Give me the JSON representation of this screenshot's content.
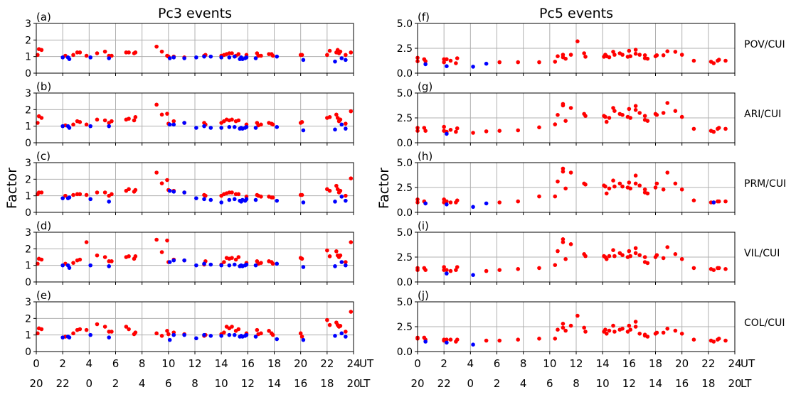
{
  "chart_data": [
    {
      "type": "scatter",
      "title": "Pc3 events",
      "ylabel": "Factor",
      "ylim": [
        0,
        3
      ],
      "yticks": [
        "0",
        "1",
        "2",
        "3"
      ],
      "xlim": [
        0,
        24
      ],
      "xticks_ut": [
        "0",
        "2",
        "4",
        "6",
        "8",
        "10",
        "12",
        "14",
        "16",
        "18",
        "20",
        "22",
        "24"
      ],
      "xticks_lt": [
        "20",
        "22",
        "0",
        "2",
        "4",
        "6",
        "8",
        "10",
        "12",
        "14",
        "16",
        "18",
        "20"
      ],
      "xlabel_ut": "UT",
      "xlabel_lt": "LT",
      "grid": true,
      "colors": {
        "red": "#ff0000",
        "blue": "#0000ff"
      },
      "red_x": [
        0.1,
        0.2,
        0.4,
        2.2,
        2.8,
        3.1,
        3.3,
        3.8,
        4.6,
        5.2,
        5.5,
        5.7,
        6.8,
        7.0,
        7.4,
        7.5,
        9.1,
        9.5,
        9.9,
        10.0,
        10.4,
        11.2,
        12.7,
        12.8,
        14.0,
        14.2,
        14.4,
        14.6,
        14.8,
        15.1,
        15.3,
        15.9,
        16.7,
        16.8,
        17.0,
        17.6,
        17.8,
        17.9,
        20.0,
        20.1,
        22.0,
        22.2,
        22.7,
        22.8,
        22.9,
        23.0,
        23.4,
        23.8
      ],
      "blue_x": [
        2.0,
        2.4,
        2.5,
        4.1,
        5.5,
        10.1,
        10.4,
        11.2,
        12.1,
        12.7,
        13.2,
        14.0,
        14.6,
        15.0,
        15.4,
        15.5,
        15.6,
        15.8,
        15.9,
        16.6,
        18.2,
        20.2,
        22.6,
        23.1,
        23.4
      ],
      "panels": [
        {
          "label": "(a)",
          "red": [
            1.1,
            1.45,
            1.4,
            1.05,
            1.1,
            1.25,
            1.25,
            1.05,
            1.2,
            1.3,
            1.05,
            1.05,
            1.25,
            1.25,
            1.2,
            1.25,
            1.6,
            1.3,
            1.05,
            1.0,
            1.0,
            0.95,
            1.05,
            1.1,
            1.05,
            1.1,
            1.15,
            1.2,
            1.2,
            1.05,
            1.15,
            1.1,
            1.2,
            1.05,
            1.05,
            1.15,
            1.15,
            1.05,
            1.1,
            1.1,
            1.1,
            1.35,
            1.25,
            1.4,
            1.2,
            1.3,
            1.1,
            1.25
          ],
          "blue": [
            0.95,
            0.95,
            0.85,
            0.95,
            0.9,
            0.9,
            0.95,
            0.9,
            0.95,
            1.0,
            1.0,
            0.95,
            0.95,
            1.0,
            0.85,
            0.95,
            0.85,
            0.9,
            0.95,
            0.9,
            1.0,
            0.8,
            0.7,
            0.9,
            0.8
          ]
        },
        {
          "label": "(b)",
          "red": [
            1.2,
            1.6,
            1.5,
            1.05,
            1.1,
            1.3,
            1.25,
            1.1,
            1.4,
            1.35,
            1.2,
            1.3,
            1.4,
            1.45,
            1.35,
            1.55,
            2.3,
            1.7,
            1.75,
            1.15,
            1.3,
            1.2,
            1.2,
            1.1,
            1.2,
            1.3,
            1.4,
            1.35,
            1.4,
            1.3,
            1.35,
            1.1,
            1.2,
            1.05,
            1.1,
            1.2,
            1.15,
            1.1,
            1.2,
            1.25,
            1.5,
            1.55,
            1.7,
            1.5,
            1.3,
            1.4,
            1.15,
            1.9
          ],
          "blue": [
            1.0,
            1.0,
            0.9,
            1.0,
            1.0,
            1.1,
            1.1,
            1.2,
            0.9,
            1.0,
            0.9,
            0.9,
            0.95,
            0.95,
            0.85,
            0.9,
            0.85,
            0.9,
            0.95,
            0.9,
            0.95,
            0.75,
            0.8,
            1.1,
            0.85
          ]
        },
        {
          "label": "(c)",
          "red": [
            1.1,
            1.2,
            1.2,
            1.0,
            1.05,
            1.1,
            1.1,
            1.05,
            1.2,
            1.2,
            1.0,
            1.1,
            1.3,
            1.4,
            1.25,
            1.35,
            2.4,
            1.75,
            1.95,
            1.35,
            1.3,
            1.2,
            1.05,
            1.0,
            1.0,
            1.1,
            1.15,
            1.2,
            1.2,
            1.1,
            1.1,
            0.95,
            1.05,
            1.0,
            0.95,
            0.95,
            0.9,
            0.9,
            1.05,
            1.05,
            1.4,
            1.3,
            1.6,
            1.4,
            1.2,
            1.3,
            1.0,
            2.05
          ],
          "blue": [
            0.85,
            0.85,
            0.9,
            0.8,
            0.65,
            1.3,
            1.25,
            1.2,
            0.85,
            0.8,
            0.75,
            0.6,
            0.75,
            0.8,
            0.7,
            0.65,
            0.75,
            0.7,
            0.8,
            0.75,
            0.7,
            0.6,
            0.65,
            0.95,
            0.7
          ]
        },
        {
          "label": "(d)",
          "red": [
            1.1,
            1.4,
            1.35,
            1.1,
            1.15,
            1.3,
            1.35,
            2.4,
            1.6,
            1.5,
            1.25,
            1.25,
            1.5,
            1.55,
            1.4,
            1.55,
            2.55,
            1.8,
            2.5,
            1.2,
            1.35,
            1.3,
            1.05,
            1.25,
            1.05,
            1.2,
            1.45,
            1.4,
            1.45,
            1.35,
            1.5,
            1.15,
            1.25,
            1.1,
            1.15,
            1.25,
            1.2,
            1.1,
            1.45,
            1.4,
            1.9,
            1.55,
            1.85,
            1.6,
            1.5,
            1.6,
            1.2,
            2.4
          ],
          "blue": [
            1.0,
            1.0,
            0.85,
            1.0,
            0.95,
            1.2,
            1.3,
            1.3,
            1.0,
            1.1,
            1.05,
            1.0,
            1.0,
            1.05,
            0.95,
            1.0,
            0.95,
            1.0,
            1.05,
            1.0,
            1.1,
            0.9,
            0.95,
            1.2,
            1.0
          ]
        },
        {
          "label": "(e)",
          "red": [
            1.1,
            1.4,
            1.35,
            0.9,
            1.1,
            1.3,
            1.35,
            1.3,
            1.65,
            1.5,
            1.2,
            1.2,
            1.5,
            1.35,
            1.05,
            1.15,
            1.1,
            0.95,
            1.25,
            1.05,
            1.15,
            1.05,
            0.95,
            1.0,
            1.05,
            1.15,
            1.5,
            1.4,
            1.5,
            1.25,
            1.35,
            1.1,
            1.3,
            1.05,
            1.1,
            1.25,
            1.1,
            1.0,
            1.1,
            0.9,
            1.9,
            1.6,
            1.75,
            1.6,
            1.5,
            1.55,
            1.2,
            2.4
          ],
          "blue": [
            0.85,
            0.9,
            0.85,
            1.0,
            0.85,
            0.7,
            1.0,
            1.0,
            0.8,
            1.0,
            0.95,
            0.95,
            1.0,
            1.0,
            0.9,
            0.95,
            0.9,
            0.95,
            1.0,
            0.9,
            0.75,
            0.7,
            0.95,
            1.1,
            0.9
          ]
        }
      ]
    },
    {
      "type": "scatter",
      "title": "Pc5 events",
      "ylabel": "Factor",
      "ylim": [
        0,
        5
      ],
      "yticks": [
        "0.0",
        "2.5",
        "5.0"
      ],
      "xlim": [
        0,
        24
      ],
      "xticks_ut": [
        "0",
        "2",
        "4",
        "6",
        "8",
        "10",
        "12",
        "14",
        "16",
        "18",
        "20",
        "22",
        "24"
      ],
      "xticks_lt": [
        "20",
        "22",
        "0",
        "2",
        "4",
        "6",
        "8",
        "10",
        "12",
        "14",
        "16",
        "18",
        "20"
      ],
      "xlabel_ut": "UT",
      "xlabel_lt": "LT",
      "grid": true,
      "colors": {
        "red": "#ff0000",
        "blue": "#0000ff"
      },
      "red_x": [
        0,
        0,
        0.5,
        0.6,
        2.0,
        2.0,
        2.2,
        2.5,
        2.9,
        3.0,
        4.2,
        5.2,
        6.2,
        7.6,
        9.2,
        10.4,
        10.6,
        11.0,
        11.0,
        11.2,
        11.6,
        12.1,
        12.6,
        12.7,
        14.1,
        14.2,
        14.3,
        14.5,
        14.8,
        14.9,
        15.3,
        15.5,
        15.9,
        16.0,
        16.1,
        16.5,
        16.5,
        16.8,
        17.2,
        17.2,
        17.4,
        18.0,
        18.1,
        18.6,
        18.9,
        19.5,
        20.0,
        20.9,
        22.2,
        22.4,
        22.7,
        22.8,
        23.3
      ],
      "panels": [
        {
          "label": "(f)",
          "station": "POV/CUI",
          "red": [
            1.55,
            1.2,
            1.4,
            1.2,
            1.4,
            1.1,
            1.4,
            1.25,
            1.0,
            1.5,
            null,
            null,
            1.1,
            1.1,
            1.1,
            1.15,
            1.7,
            1.85,
            1.6,
            1.45,
            1.85,
            3.2,
            2.0,
            1.65,
            1.65,
            1.85,
            1.7,
            1.6,
            2.15,
            1.85,
            2.0,
            1.85,
            1.65,
            2.25,
            1.7,
            2.35,
            1.95,
            1.85,
            1.8,
            1.5,
            1.45,
            1.7,
            1.8,
            1.8,
            2.2,
            2.15,
            1.85,
            1.25,
            1.15,
            1.0,
            1.25,
            1.35,
            1.25
          ],
          "blue": [
            [
              0.6,
              0.9
            ],
            [
              2.2,
              0.7
            ],
            [
              4.2,
              0.65
            ],
            [
              5.2,
              0.95
            ]
          ]
        },
        {
          "label": "(g)",
          "station": "ARI/CUI",
          "red": [
            1.5,
            1.2,
            1.5,
            1.2,
            1.6,
            1.2,
            1.1,
            1.3,
            1.1,
            1.45,
            1.0,
            1.15,
            1.2,
            1.25,
            1.55,
            1.85,
            2.8,
            3.9,
            3.75,
            2.2,
            3.5,
            null,
            2.9,
            2.7,
            2.7,
            2.6,
            2.1,
            2.5,
            3.5,
            3.2,
            2.9,
            2.8,
            2.6,
            3.4,
            2.5,
            3.7,
            3.3,
            3.0,
            2.7,
            2.3,
            2.2,
            2.9,
            2.8,
            3.0,
            4.0,
            3.2,
            2.6,
            1.4,
            1.2,
            1.1,
            1.4,
            1.5,
            1.4
          ],
          "blue": [
            [
              2.2,
              0.9
            ]
          ]
        },
        {
          "label": "(h)",
          "station": "PRM/CUI",
          "red": [
            1.3,
            1.0,
            1.1,
            0.9,
            1.3,
            1.0,
            1.1,
            1.0,
            1.0,
            1.2,
            null,
            null,
            1.0,
            1.1,
            1.6,
            1.6,
            3.1,
            4.4,
            4.1,
            2.4,
            4.0,
            null,
            2.9,
            2.8,
            2.7,
            2.6,
            1.9,
            2.4,
            3.2,
            2.6,
            2.9,
            2.6,
            2.5,
            3.0,
            2.4,
            3.7,
            2.9,
            2.7,
            2.3,
            2.0,
            1.9,
            2.5,
            2.9,
            2.3,
            4.0,
            2.9,
            2.3,
            1.2,
            1.0,
            1.0,
            1.1,
            1.1,
            1.1
          ],
          "blue": [
            [
              0.6,
              0.9
            ],
            [
              2.2,
              0.8
            ],
            [
              4.2,
              0.55
            ],
            [
              5.2,
              0.9
            ],
            [
              22.4,
              1.0
            ]
          ]
        },
        {
          "label": "(i)",
          "station": "VIL/CUI",
          "red": [
            1.4,
            1.2,
            1.4,
            1.2,
            1.5,
            1.2,
            1.2,
            1.1,
            1.2,
            1.5,
            null,
            1.1,
            1.2,
            1.3,
            1.4,
            1.7,
            3.1,
            4.3,
            4.0,
            2.3,
            3.8,
            null,
            2.8,
            2.6,
            2.6,
            2.5,
            2.3,
            2.6,
            3.2,
            2.6,
            2.9,
            2.7,
            2.5,
            3.1,
            2.6,
            3.4,
            2.9,
            2.7,
            2.5,
            2.0,
            1.9,
            2.5,
            2.7,
            2.4,
            3.5,
            2.8,
            2.3,
            1.4,
            1.3,
            1.2,
            1.4,
            1.4,
            1.3
          ],
          "blue": [
            [
              2.2,
              0.85
            ],
            [
              4.2,
              0.7
            ]
          ]
        },
        {
          "label": "(j)",
          "station": "COL/CUI",
          "red": [
            1.4,
            1.3,
            1.4,
            1.2,
            1.2,
            1.1,
            1.2,
            1.2,
            1.0,
            1.2,
            null,
            1.1,
            1.1,
            1.2,
            1.3,
            1.3,
            2.2,
            2.8,
            2.4,
            2.1,
            2.6,
            3.6,
            2.4,
            2.0,
            2.0,
            2.2,
            1.8,
            2.1,
            2.6,
            2.0,
            2.2,
            2.3,
            2.0,
            2.6,
            2.2,
            3.0,
            2.5,
            1.8,
            1.7,
            1.6,
            1.5,
            1.8,
            1.9,
            1.9,
            2.3,
            2.1,
            1.8,
            1.2,
            1.1,
            1.0,
            1.2,
            1.3,
            1.1
          ],
          "blue": [
            [
              0.6,
              1.0
            ],
            [
              2.2,
              0.9
            ],
            [
              4.2,
              0.7
            ]
          ]
        }
      ]
    }
  ]
}
